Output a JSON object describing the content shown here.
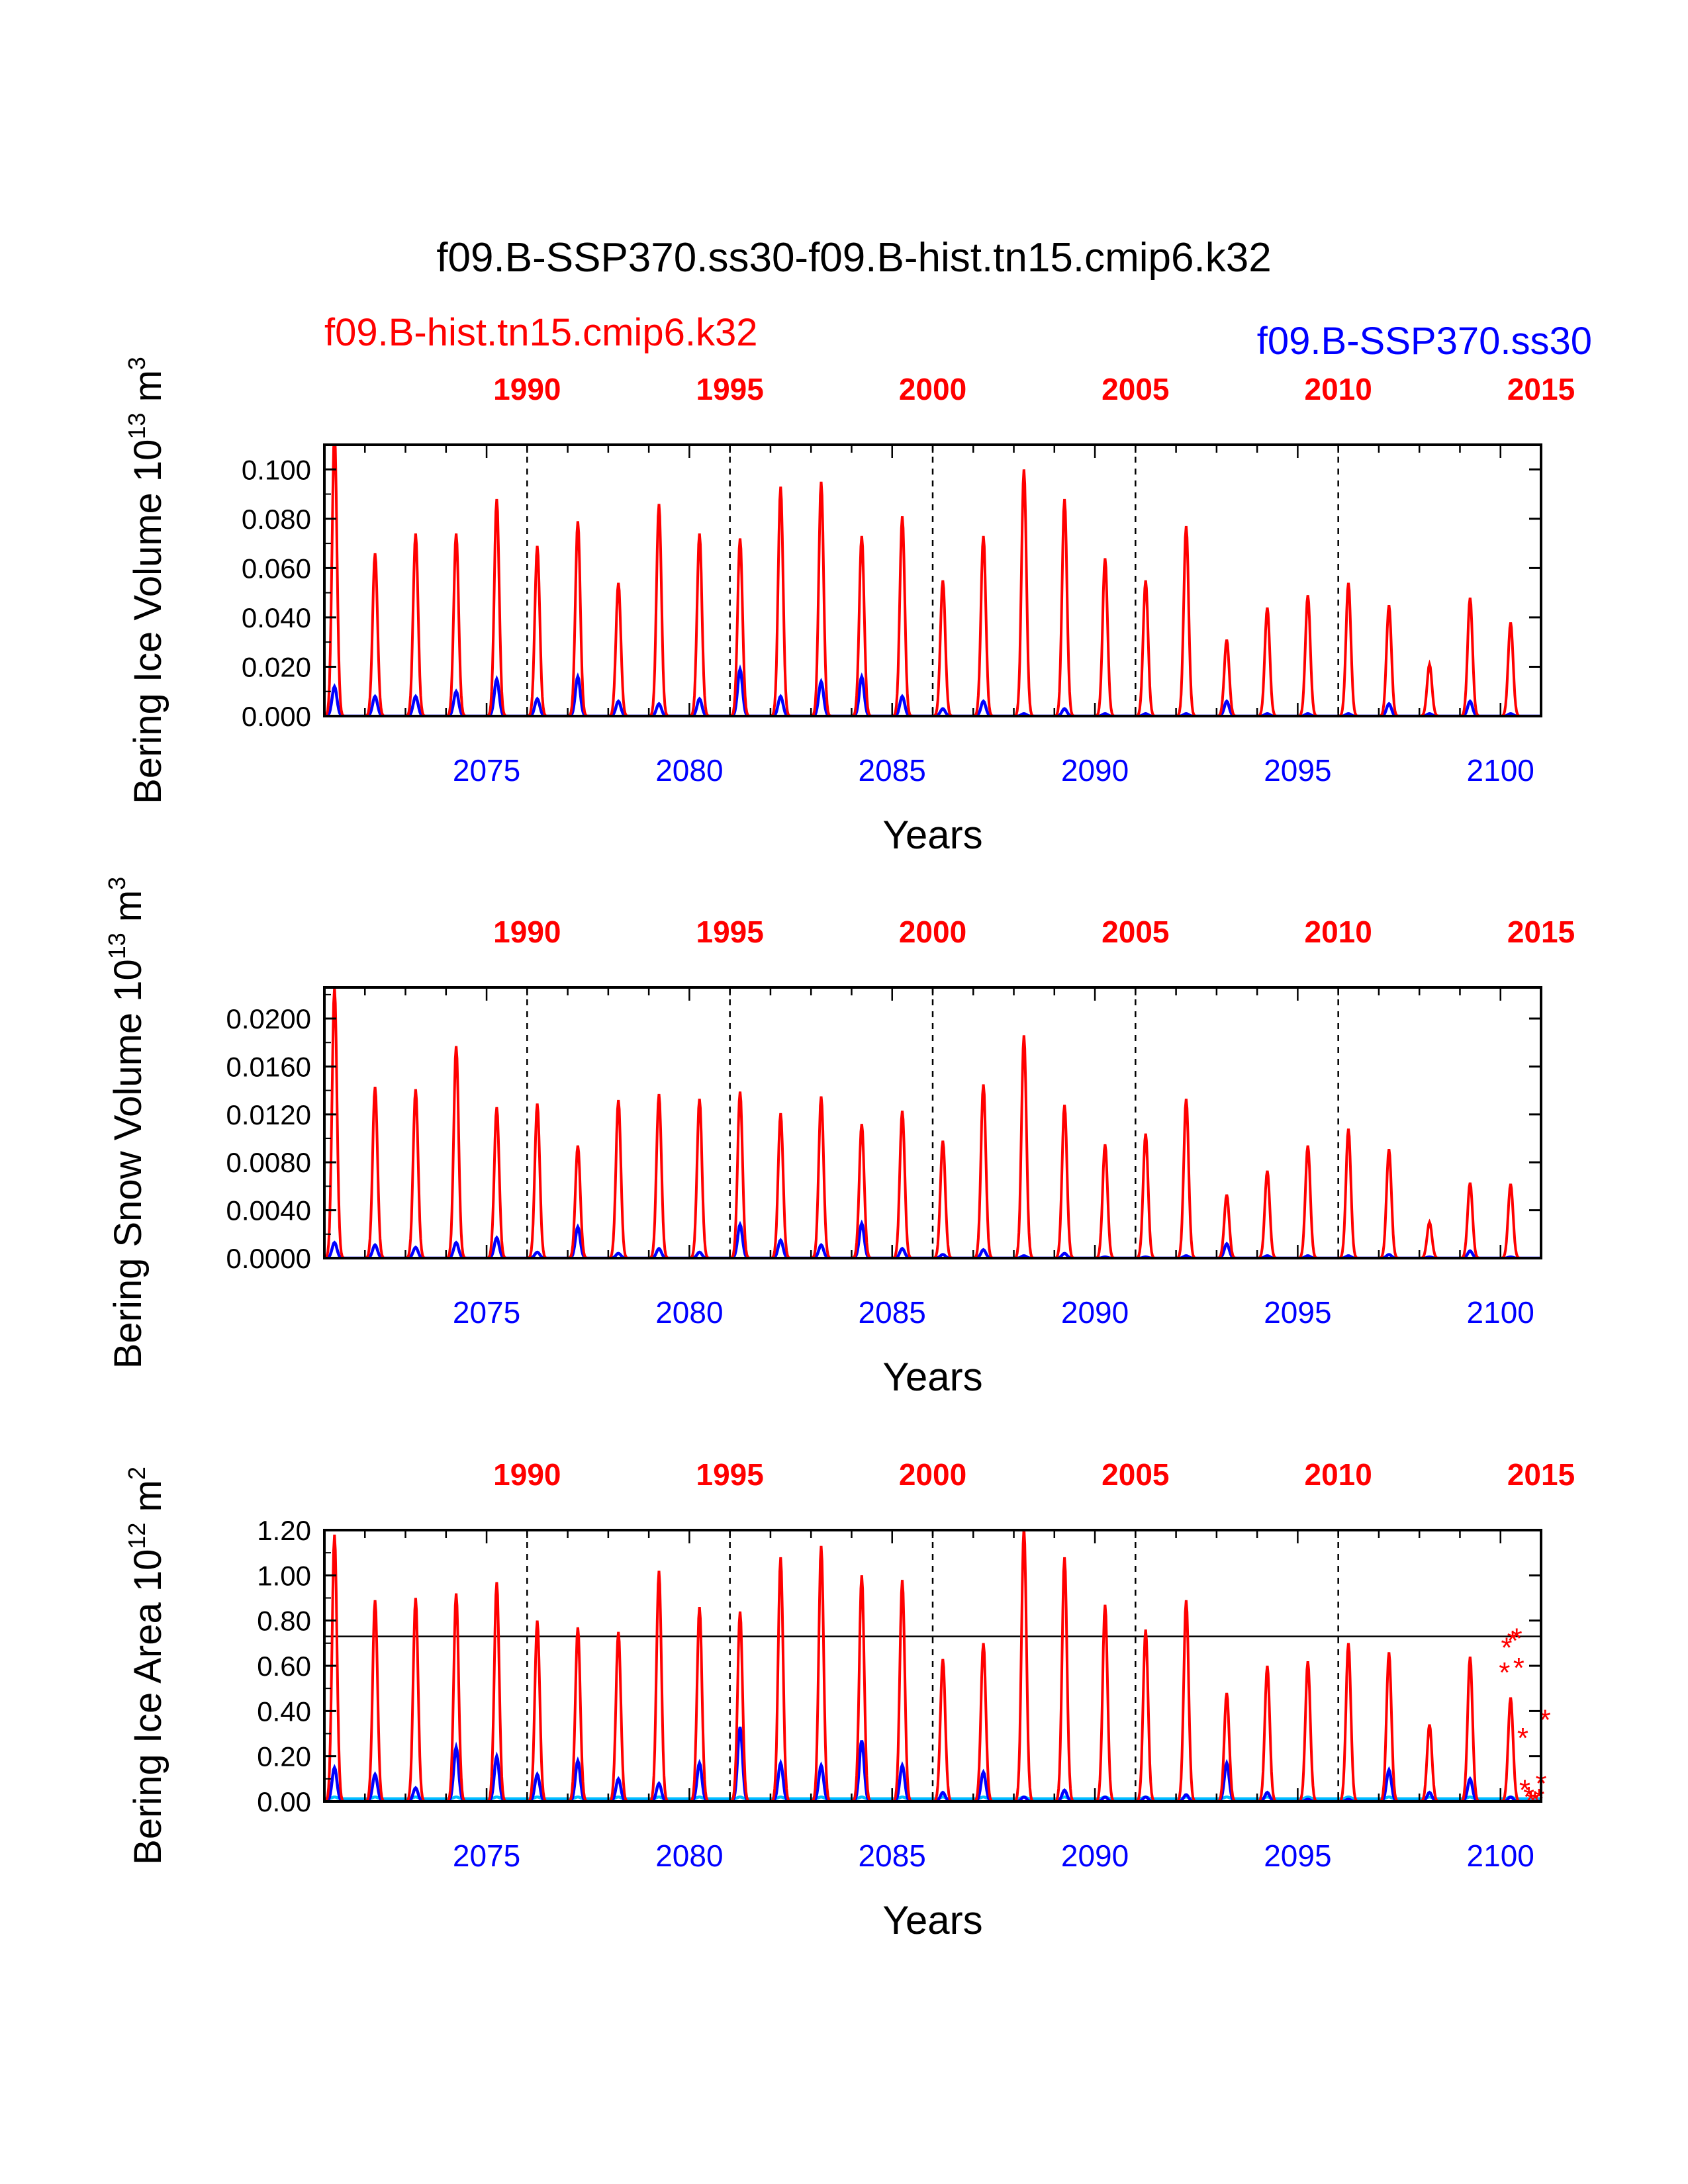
{
  "figure": {
    "title": "f09.B-SSP370.ss30-f09.B-hist.tn15.cmip6.k32",
    "legend_left": "f09.B-hist.tn15.cmip6.k32",
    "legend_right": "f09.B-SSP370.ss30",
    "colors": {
      "hist": "#ff0000",
      "ssp": "#0000ff",
      "ssp_min": "#00bfff",
      "axis": "#000000"
    }
  },
  "chart_data": [
    {
      "type": "line",
      "ylabel": "Bering Ice Volume 10",
      "ylabel_exp": "13",
      "ylabel_unit": " m",
      "ylabel_unit_exp": "3",
      "xlabel": "Years",
      "x_bottom_ticks": [
        "2075",
        "2080",
        "2085",
        "2090",
        "2095",
        "2100"
      ],
      "x_bottom_values": [
        2075,
        2080,
        2085,
        2090,
        2095,
        2100
      ],
      "x_top_ticks": [
        "1990",
        "1995",
        "2000",
        "2005",
        "2010",
        "2015"
      ],
      "x_top_values": [
        2076,
        2081,
        2086,
        2091,
        2096,
        2101
      ],
      "xlim": [
        2071,
        2101
      ],
      "ylim": [
        0,
        0.11
      ],
      "yticks": [
        "0.000",
        "0.020",
        "0.040",
        "0.060",
        "0.080",
        "0.100"
      ],
      "ytick_values": [
        0,
        0.02,
        0.04,
        0.06,
        0.08,
        0.1
      ],
      "ref_line": null,
      "series": [
        {
          "key": "hist",
          "peaks": [
            0.115,
            0.066,
            0.074,
            0.074,
            0.088,
            0.069,
            0.079,
            0.054,
            0.086,
            0.074,
            0.072,
            0.093,
            0.095,
            0.073,
            0.081,
            0.055,
            0.073,
            0.1,
            0.088,
            0.064,
            0.055,
            0.077,
            0.031,
            0.044,
            0.049,
            0.054,
            0.045,
            0.021,
            0.048,
            0.038
          ]
        },
        {
          "key": "ssp",
          "peaks": [
            0.012,
            0.008,
            0.008,
            0.01,
            0.015,
            0.007,
            0.016,
            0.006,
            0.005,
            0.007,
            0.019,
            0.008,
            0.014,
            0.016,
            0.008,
            0.003,
            0.006,
            0.001,
            0.003,
            0.001,
            0.001,
            0.001,
            0.006,
            0.001,
            0.001,
            0.001,
            0.005,
            0.001,
            0.006,
            0.001
          ]
        }
      ]
    },
    {
      "type": "line",
      "ylabel": "Bering Snow Volume 10",
      "ylabel_exp": "13",
      "ylabel_unit": " m",
      "ylabel_unit_exp": "3",
      "xlabel": "Years",
      "x_bottom_ticks": [
        "2075",
        "2080",
        "2085",
        "2090",
        "2095",
        "2100"
      ],
      "x_bottom_values": [
        2075,
        2080,
        2085,
        2090,
        2095,
        2100
      ],
      "x_top_ticks": [
        "1990",
        "1995",
        "2000",
        "2005",
        "2010",
        "2015"
      ],
      "x_top_values": [
        2076,
        2081,
        2086,
        2091,
        2096,
        2101
      ],
      "xlim": [
        2071,
        2101
      ],
      "ylim": [
        0,
        0.0226
      ],
      "yticks": [
        "0.0000",
        "0.0040",
        "0.0080",
        "0.0120",
        "0.0160",
        "0.0200"
      ],
      "ytick_values": [
        0,
        0.004,
        0.008,
        0.012,
        0.016,
        0.02
      ],
      "ref_line": null,
      "series": [
        {
          "key": "hist",
          "peaks": [
            0.0226,
            0.0143,
            0.0141,
            0.0177,
            0.0126,
            0.0129,
            0.0094,
            0.0132,
            0.0137,
            0.0133,
            0.0139,
            0.0121,
            0.0135,
            0.0112,
            0.0123,
            0.0098,
            0.0145,
            0.0186,
            0.0128,
            0.0095,
            0.0104,
            0.0133,
            0.0053,
            0.0073,
            0.0094,
            0.0108,
            0.0091,
            0.003,
            0.0063,
            0.0062
          ]
        },
        {
          "key": "ssp",
          "peaks": [
            0.0013,
            0.0011,
            0.0009,
            0.0013,
            0.0017,
            0.0005,
            0.0026,
            0.0004,
            0.0008,
            0.0005,
            0.0028,
            0.0015,
            0.0011,
            0.0029,
            0.0008,
            0.0003,
            0.0007,
            0.0002,
            0.0004,
            0.0001,
            0.0001,
            0.0002,
            0.0012,
            0.0002,
            0.0002,
            0.0002,
            0.0003,
            0.0001,
            0.0006,
            0.0001
          ]
        }
      ]
    },
    {
      "type": "line",
      "ylabel": "Bering Ice Area 10",
      "ylabel_exp": "12",
      "ylabel_unit": " m",
      "ylabel_unit_exp": "2",
      "xlabel": "Years",
      "x_bottom_ticks": [
        "2075",
        "2080",
        "2085",
        "2090",
        "2095",
        "2100"
      ],
      "x_bottom_values": [
        2075,
        2080,
        2085,
        2090,
        2095,
        2100
      ],
      "x_top_ticks": [
        "1990",
        "1995",
        "2000",
        "2005",
        "2010",
        "2015"
      ],
      "x_top_values": [
        2076,
        2081,
        2086,
        2091,
        2096,
        2101
      ],
      "xlim": [
        2071,
        2101
      ],
      "ylim": [
        0,
        1.2
      ],
      "yticks": [
        "0.00",
        "0.20",
        "0.40",
        "0.60",
        "0.80",
        "1.00",
        "1.20"
      ],
      "ytick_values": [
        0,
        0.2,
        0.4,
        0.6,
        0.8,
        1.0,
        1.2
      ],
      "ref_line": 0.73,
      "series": [
        {
          "key": "hist",
          "peaks": [
            1.18,
            0.89,
            0.9,
            0.92,
            0.97,
            0.8,
            0.77,
            0.75,
            1.02,
            0.86,
            0.84,
            1.08,
            1.13,
            1.0,
            0.98,
            0.63,
            0.7,
            1.21,
            1.08,
            0.87,
            0.76,
            0.89,
            0.48,
            0.6,
            0.62,
            0.7,
            0.66,
            0.34,
            0.64,
            0.46
          ]
        },
        {
          "key": "ssp",
          "peaks": [
            0.15,
            0.12,
            0.06,
            0.24,
            0.2,
            0.12,
            0.18,
            0.1,
            0.08,
            0.17,
            0.33,
            0.17,
            0.16,
            0.27,
            0.16,
            0.04,
            0.13,
            0.02,
            0.05,
            0.02,
            0.02,
            0.03,
            0.17,
            0.04,
            0.01,
            0.01,
            0.14,
            0.04,
            0.1,
            0.02
          ]
        },
        {
          "key": "ssp_min",
          "peaks": [
            0.02,
            0.02,
            0.02,
            0.02,
            0.02,
            0.02,
            0.02,
            0.02,
            0.02,
            0.02,
            0.02,
            0.02,
            0.02,
            0.02,
            0.02,
            0.02,
            0.02,
            0.02,
            0.02,
            0.02,
            0.02,
            0.02,
            0.02,
            0.02,
            0.02,
            0.02,
            0.02,
            0.02,
            0.02,
            0.02
          ]
        }
      ],
      "markers": {
        "key": "hist",
        "points": [
          [
            2100.1,
            0.58
          ],
          [
            2100.15,
            0.69
          ],
          [
            2100.3,
            0.72
          ],
          [
            2100.4,
            0.73
          ],
          [
            2100.45,
            0.6
          ],
          [
            2100.55,
            0.29
          ],
          [
            2100.6,
            0.06
          ],
          [
            2100.7,
            0.03
          ],
          [
            2100.75,
            0.01
          ],
          [
            2100.85,
            0.01
          ],
          [
            2100.95,
            0.02
          ],
          [
            2101.0,
            0.09
          ],
          [
            2101.1,
            0.37
          ]
        ]
      }
    }
  ]
}
